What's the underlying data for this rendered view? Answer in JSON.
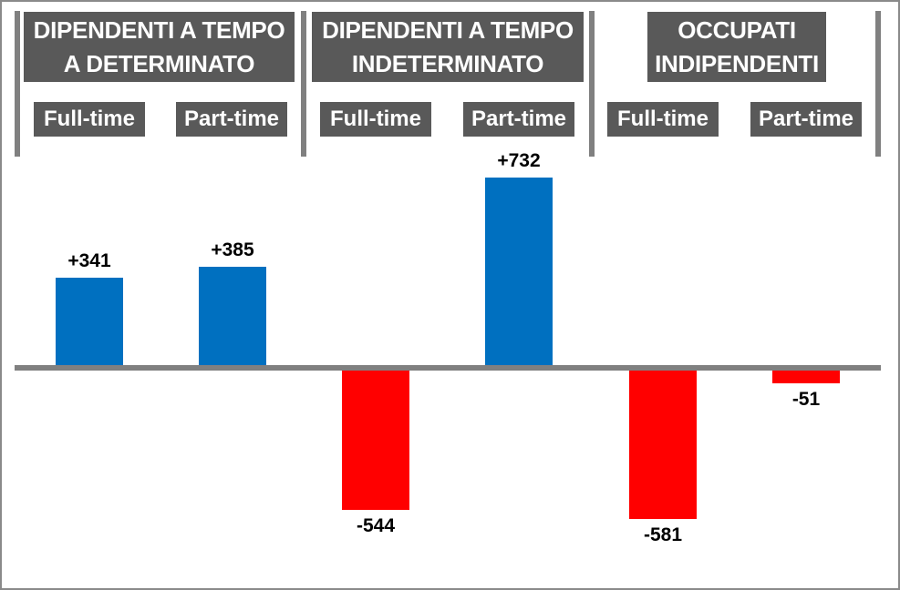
{
  "chart_data": {
    "type": "bar",
    "title": "",
    "xlabel": "",
    "ylabel": "",
    "baseline": 0,
    "gridlines": false,
    "legend": null,
    "axis_tick_labels_visible": false,
    "value_labels_position": "outside-end",
    "groups": [
      {
        "title_lines": [
          "DIPENDENTI A TEMPO",
          "A DETERMINATO"
        ],
        "bars": [
          {
            "category": "Full-time",
            "value": 341,
            "label": "+341"
          },
          {
            "category": "Part-time",
            "value": 385,
            "label": "+385"
          }
        ]
      },
      {
        "title_lines": [
          "DIPENDENTI A TEMPO",
          "INDETERMINATO"
        ],
        "bars": [
          {
            "category": "Full-time",
            "value": -544,
            "label": "-544"
          },
          {
            "category": "Part-time",
            "value": 732,
            "label": "+732"
          }
        ]
      },
      {
        "title_lines": [
          "OCCUPATI",
          "INDIPENDENTI"
        ],
        "bars": [
          {
            "category": "Full-time",
            "value": -581,
            "label": "-581"
          },
          {
            "category": "Part-time",
            "value": -51,
            "label": "-51"
          }
        ]
      }
    ],
    "colors": {
      "positive_bar": "#0070C0",
      "negative_bar": "#FF0000",
      "header_bg": "#595959",
      "header_text": "#FFFFFF",
      "value_label": "#000000",
      "axis_line": "#808080",
      "divider": "#808080"
    }
  }
}
